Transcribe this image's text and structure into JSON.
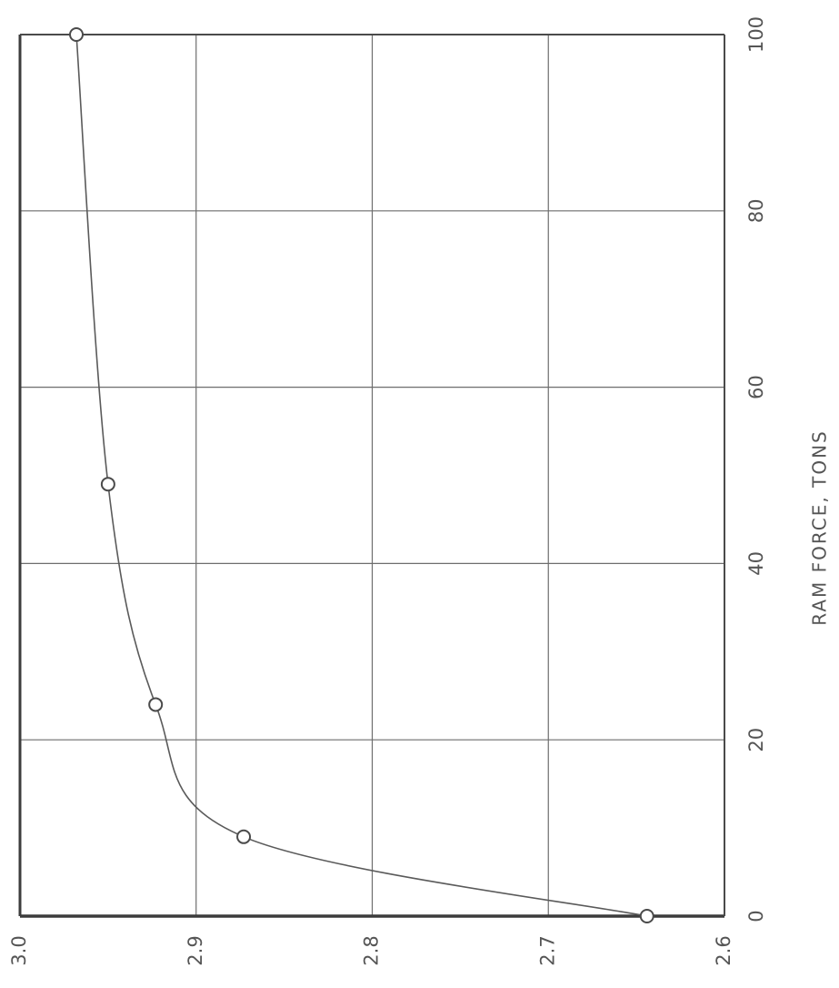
{
  "chart_data": {
    "type": "scatter",
    "title": "",
    "xlabel": "RAM FORCE, TONS",
    "ylabel": "",
    "x_ticks": [
      "0",
      "20",
      "40",
      "60",
      "80",
      "100"
    ],
    "y_ticks": [
      "3.0",
      "2.9",
      "2.8",
      "2.7",
      "2.6"
    ],
    "xlim": [
      0,
      100
    ],
    "ylim": [
      2.6,
      3.0
    ],
    "grid": true,
    "orientation": "rotated 90° counter-clockwise (x axis runs vertically, y axis horizontally)",
    "series": [
      {
        "x": [
          0,
          9,
          24,
          49,
          100
        ],
        "y": [
          2.644,
          2.873,
          2.923,
          2.95,
          2.968
        ],
        "markers": "open circles",
        "fit": "smooth curve"
      }
    ]
  }
}
